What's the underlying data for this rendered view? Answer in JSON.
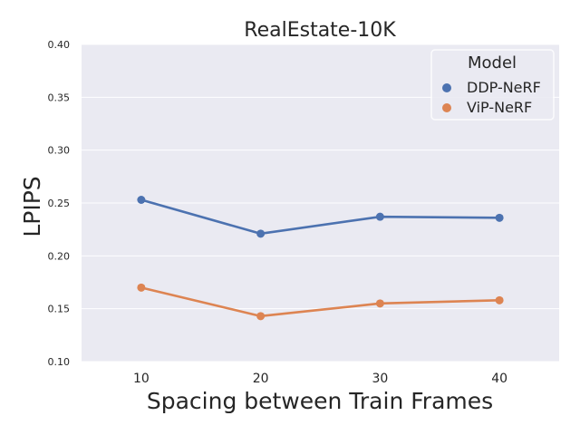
{
  "chart_data": {
    "type": "line",
    "title": "RealEstate-10K",
    "xlabel": "Spacing between Train Frames",
    "ylabel": "LPIPS",
    "categories": [
      "10",
      "20",
      "30",
      "40"
    ],
    "series": [
      {
        "name": "DDP-NeRF",
        "color": "#4c72b0",
        "values": [
          0.253,
          0.221,
          0.237,
          0.236
        ]
      },
      {
        "name": "ViP-NeRF",
        "color": "#dd8452",
        "values": [
          0.17,
          0.143,
          0.155,
          0.158
        ]
      }
    ],
    "yticks": [
      "0.10",
      "0.15",
      "0.20",
      "0.25",
      "0.30",
      "0.35",
      "0.40"
    ],
    "ylim": [
      0.1,
      0.4
    ],
    "grid": true,
    "legend": {
      "title": "Model",
      "placement": "top-right"
    },
    "colors": {
      "plot_background": "#eaeaf2",
      "grid": "#ffffff"
    }
  }
}
